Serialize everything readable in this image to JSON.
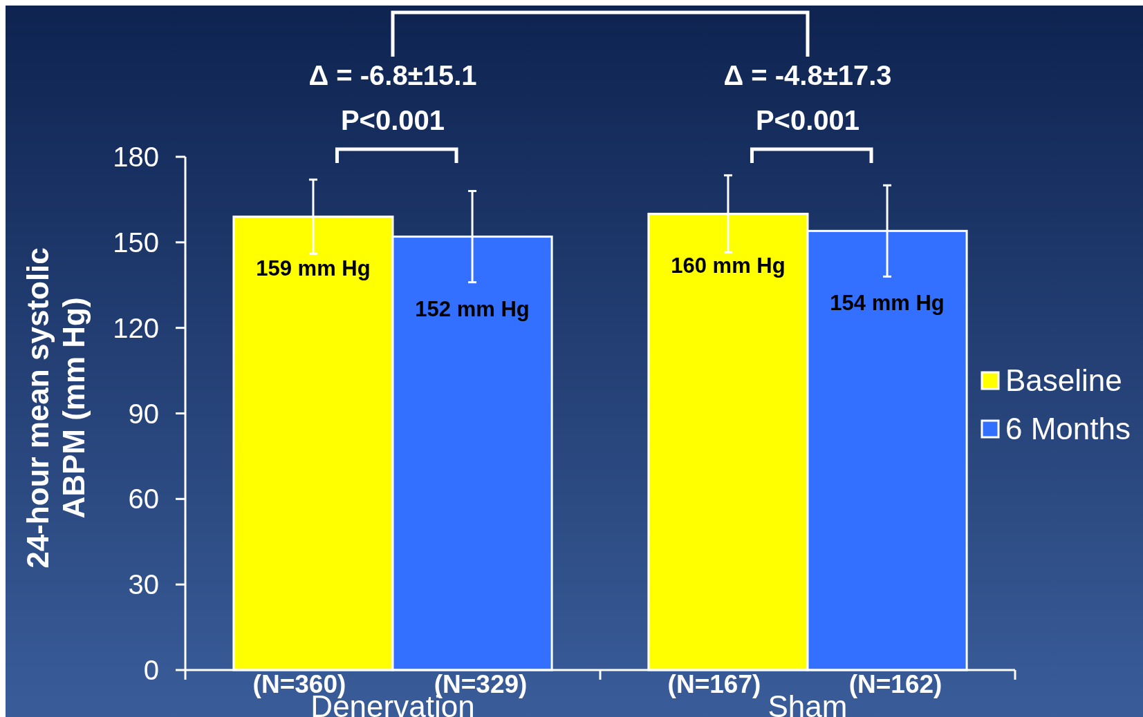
{
  "chart_data": {
    "type": "bar",
    "ylabel": "24-hour mean systolic ABPM (mm Hg)",
    "categories": [
      "Denervation",
      "Sham"
    ],
    "series": [
      {
        "name": "Baseline",
        "color": "#ffff00",
        "values": [
          159,
          160
        ],
        "errors": [
          13,
          13.5
        ],
        "value_labels": [
          "159 mm Hg",
          "160 mm Hg"
        ]
      },
      {
        "name": "6 Months",
        "color": "#3370ff",
        "values": [
          152,
          154
        ],
        "errors": [
          16,
          16
        ],
        "value_labels": [
          "152 mm Hg",
          "154 mm Hg"
        ]
      }
    ],
    "ylim": [
      0,
      180
    ],
    "yticks": [
      0,
      30,
      60,
      90,
      120,
      150,
      180
    ],
    "legend": "right",
    "grid": false,
    "annotations": [
      "Δ = -6.8±15.1",
      "P<0.001",
      "Δ = -4.8±17.3",
      "P<0.001",
      "(N=360)",
      "(N=329)",
      "(N=167)",
      "(N=162)"
    ]
  }
}
